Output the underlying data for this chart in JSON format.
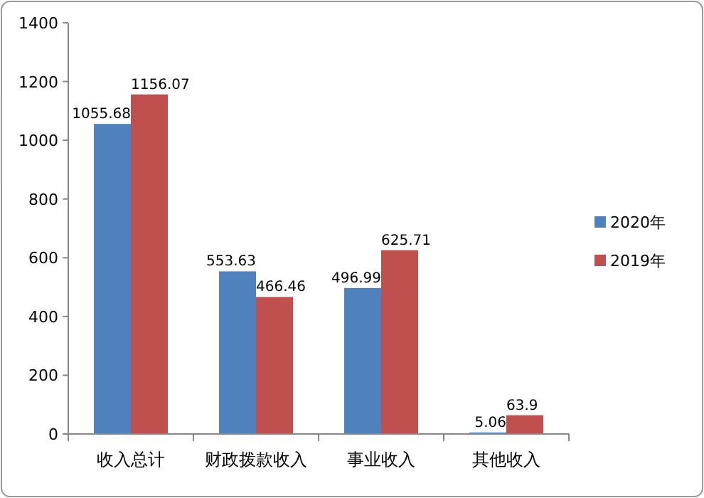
{
  "chart_data": {
    "type": "bar",
    "categories": [
      "收入总计",
      "财政拨款收入",
      "事业收入",
      "其他收入"
    ],
    "series": [
      {
        "name": "2020年",
        "color": "#4f81bd",
        "values": [
          1055.68,
          553.63,
          496.99,
          5.06
        ]
      },
      {
        "name": "2019年",
        "color": "#c0504d",
        "values": [
          1156.07,
          466.46,
          625.71,
          63.9
        ]
      }
    ],
    "ylim": [
      0,
      1400
    ],
    "yticks": [
      0,
      200,
      400,
      600,
      800,
      1000,
      1200,
      1400
    ],
    "data_labels": true,
    "legend": "right"
  }
}
